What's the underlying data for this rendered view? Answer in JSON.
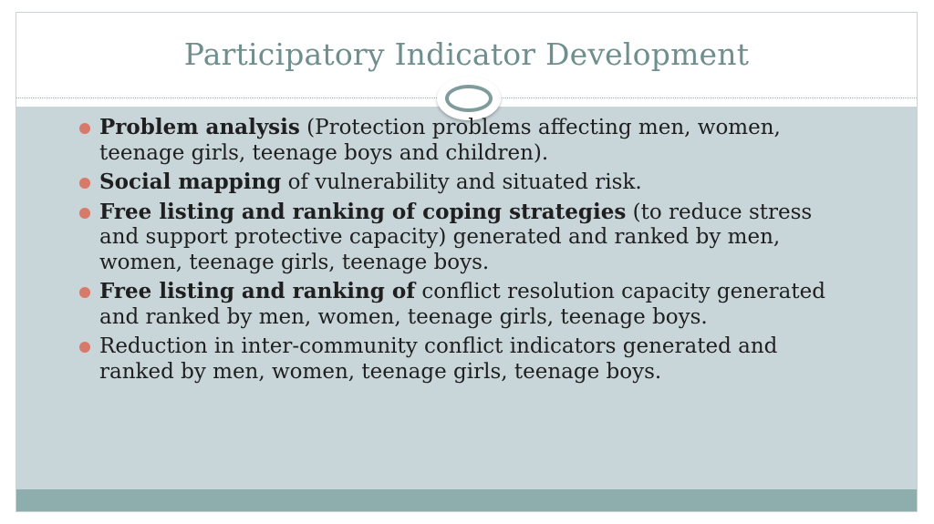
{
  "slide": {
    "title": "Participatory Indicator Development",
    "bullets": [
      {
        "bold": "Problem analysis",
        "text": " (Protection problems affecting men, women, teenage girls, teenage boys and children)."
      },
      {
        "bold": "Social mapping",
        "text": " of vulnerability and situated risk."
      },
      {
        "bold": "Free listing and ranking of coping strategies",
        "text": " (to reduce stress and support protective capacity) generated and ranked by men, women, teenage girls, teenage boys."
      },
      {
        "bold": "Free listing and ranking of",
        "text": " conflict resolution capacity generated and ranked by men, women, teenage girls, teenage boys."
      },
      {
        "bold": "",
        "text": "Reduction in inter-community conflict indicators generated and ranked by men, women, teenage girls, teenage boys."
      }
    ]
  },
  "colors": {
    "title": "#6f8f8f",
    "body_background": "#c8d5d9",
    "footer_bar": "#8eaeae",
    "bullet": "#d9796a",
    "ornament_ring": "#7f9b9c"
  }
}
